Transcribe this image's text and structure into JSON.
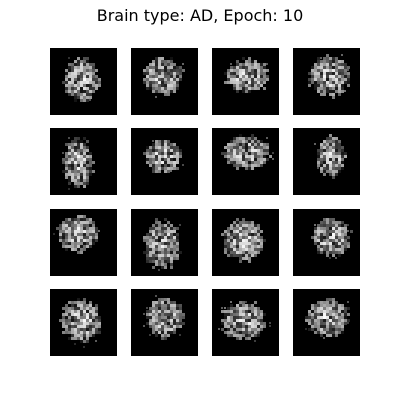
{
  "figure": {
    "title": "Brain type: AD, Epoch: 10",
    "background_color": "#ffffff",
    "tile_background_color": "#000000"
  },
  "grid": {
    "rows": 4,
    "columns": 4,
    "tiles": [
      {
        "label": "generated-sample-1"
      },
      {
        "label": "generated-sample-2"
      },
      {
        "label": "generated-sample-3"
      },
      {
        "label": "generated-sample-4"
      },
      {
        "label": "generated-sample-5"
      },
      {
        "label": "generated-sample-6"
      },
      {
        "label": "generated-sample-7"
      },
      {
        "label": "generated-sample-8"
      },
      {
        "label": "generated-sample-9"
      },
      {
        "label": "generated-sample-10"
      },
      {
        "label": "generated-sample-11"
      },
      {
        "label": "generated-sample-12"
      },
      {
        "label": "generated-sample-13"
      },
      {
        "label": "generated-sample-14"
      },
      {
        "label": "generated-sample-15"
      },
      {
        "label": "generated-sample-16"
      }
    ]
  }
}
